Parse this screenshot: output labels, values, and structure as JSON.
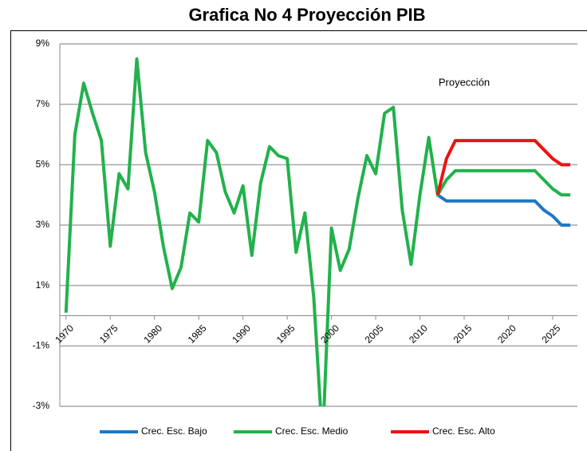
{
  "chart_data": {
    "type": "line",
    "title": "Grafica No 4 Proyección PIB",
    "annotation": "Proyección",
    "x": [
      1970,
      1971,
      1972,
      1973,
      1974,
      1975,
      1976,
      1977,
      1978,
      1979,
      1980,
      1981,
      1982,
      1983,
      1984,
      1985,
      1986,
      1987,
      1988,
      1989,
      1990,
      1991,
      1992,
      1993,
      1994,
      1995,
      1996,
      1997,
      1998,
      1999,
      2000,
      2001,
      2002,
      2003,
      2004,
      2005,
      2006,
      2007,
      2008,
      2009,
      2010,
      2011,
      2012,
      2013,
      2014,
      2015,
      2016,
      2017,
      2018,
      2019,
      2020,
      2021,
      2022,
      2023,
      2024,
      2025,
      2026,
      2027
    ],
    "series": [
      {
        "name": "Crec. Esc. Bajo",
        "color": "#1f77c4",
        "values": [
          null,
          null,
          null,
          null,
          null,
          null,
          null,
          null,
          null,
          null,
          null,
          null,
          null,
          null,
          null,
          null,
          null,
          null,
          null,
          null,
          null,
          null,
          null,
          null,
          null,
          null,
          null,
          null,
          null,
          null,
          null,
          null,
          null,
          null,
          null,
          null,
          null,
          null,
          null,
          null,
          null,
          null,
          4.0,
          3.8,
          3.8,
          3.8,
          3.8,
          3.8,
          3.8,
          3.8,
          3.8,
          3.8,
          3.8,
          3.8,
          3.5,
          3.3,
          3.0,
          3.0
        ]
      },
      {
        "name": "Crec. Esc. Medio",
        "color": "#22b14c",
        "values": [
          0.1,
          6.0,
          7.7,
          6.7,
          5.8,
          2.3,
          4.7,
          4.2,
          8.5,
          5.4,
          4.1,
          2.3,
          0.9,
          1.6,
          3.4,
          3.1,
          5.8,
          5.4,
          4.1,
          3.4,
          4.3,
          2.0,
          4.4,
          5.6,
          5.3,
          5.2,
          2.1,
          3.4,
          0.6,
          -4.2,
          2.9,
          1.5,
          2.2,
          3.9,
          5.3,
          4.7,
          6.7,
          6.9,
          3.5,
          1.7,
          4.0,
          5.9,
          4.0,
          4.5,
          4.8,
          4.8,
          4.8,
          4.8,
          4.8,
          4.8,
          4.8,
          4.8,
          4.8,
          4.8,
          4.5,
          4.2,
          4.0,
          4.0
        ]
      },
      {
        "name": "Crec. Esc. Alto",
        "color": "#ee1111",
        "values": [
          null,
          null,
          null,
          null,
          null,
          null,
          null,
          null,
          null,
          null,
          null,
          null,
          null,
          null,
          null,
          null,
          null,
          null,
          null,
          null,
          null,
          null,
          null,
          null,
          null,
          null,
          null,
          null,
          null,
          null,
          null,
          null,
          null,
          null,
          null,
          null,
          null,
          null,
          null,
          null,
          null,
          null,
          4.0,
          5.2,
          5.8,
          5.8,
          5.8,
          5.8,
          5.8,
          5.8,
          5.8,
          5.8,
          5.8,
          5.8,
          5.5,
          5.2,
          5.0,
          5.0
        ]
      }
    ],
    "xlim": [
      1969.3,
      2027.8
    ],
    "xticks": [
      1970,
      1975,
      1980,
      1985,
      1990,
      1995,
      2000,
      2005,
      2010,
      2015,
      2020,
      2025
    ],
    "ylim": [
      -3,
      9
    ],
    "yticks": [
      {
        "value": -3,
        "label": "-3%"
      },
      {
        "value": -1,
        "label": "-1%"
      },
      {
        "value": 1,
        "label": "1%"
      },
      {
        "value": 3,
        "label": "3%"
      },
      {
        "value": 5,
        "label": "5%"
      },
      {
        "value": 7,
        "label": "7%"
      },
      {
        "value": 9,
        "label": "9%"
      }
    ],
    "grid": true
  }
}
